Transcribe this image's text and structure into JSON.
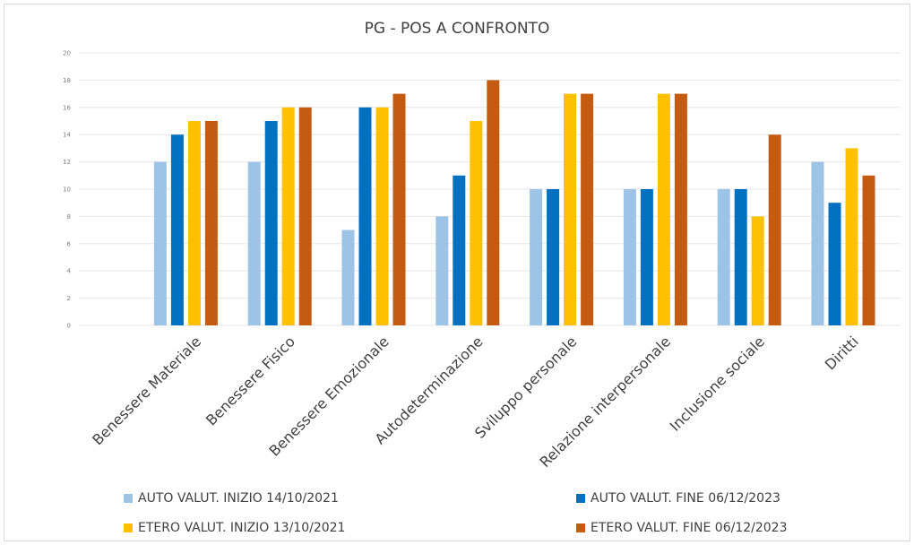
{
  "chart_data": {
    "type": "bar",
    "title": "PG - POS A CONFRONTO",
    "xlabel": "",
    "ylabel": "",
    "ylim": [
      0,
      20
    ],
    "yticks": [
      "0",
      "2",
      "4",
      "6",
      "8",
      "10",
      "12",
      "14",
      "16",
      "18",
      "20"
    ],
    "grid": true,
    "legend_position": "bottom",
    "categories": [
      "Benessere Materiale",
      "Benessere Fisico",
      "Benessere Emozionale",
      "Autodeterminazione",
      "Sviluppo personale",
      "Relazione interpersonale",
      "Inclusione sociale",
      "Diritti"
    ],
    "series": [
      {
        "name": "AUTO VALUT. INIZIO 14/10/2021",
        "color": "#9DC3E6",
        "values": [
          12,
          12,
          7,
          8,
          10,
          10,
          10,
          12
        ]
      },
      {
        "name": "AUTO VALUT. FINE 06/12/2023",
        "color": "#0070C0",
        "values": [
          14,
          15,
          16,
          11,
          10,
          10,
          10,
          9
        ]
      },
      {
        "name": "ETERO VALUT. INIZIO 13/10/2021",
        "color": "#FFC000",
        "values": [
          15,
          16,
          16,
          15,
          17,
          17,
          8,
          13
        ]
      },
      {
        "name": "ETERO VALUT. FINE 06/12/2023",
        "color": "#C55A11",
        "values": [
          15,
          16,
          17,
          18,
          17,
          17,
          14,
          11
        ]
      }
    ]
  }
}
